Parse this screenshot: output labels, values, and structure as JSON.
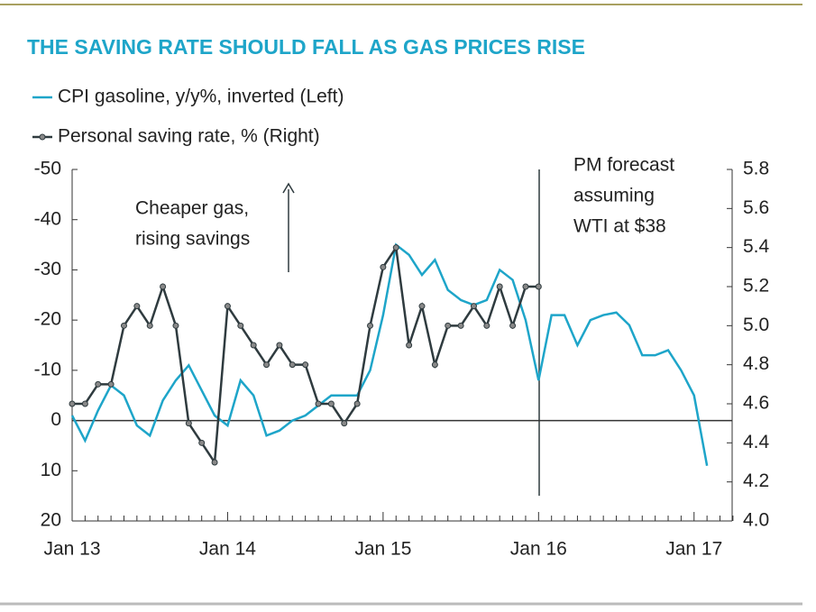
{
  "chart_data": {
    "type": "line",
    "title": "THE SAVING RATE SHOULD FALL AS GAS PRICES RISE",
    "annotations": [
      [
        "Cheaper gas,",
        "rising savings"
      ],
      [
        "PM forecast",
        "assuming",
        "WTI at $38"
      ]
    ],
    "categories": [
      "Jan 13",
      null,
      null,
      null,
      null,
      null,
      null,
      null,
      null,
      null,
      null,
      null,
      "Jan 14",
      null,
      null,
      null,
      null,
      null,
      null,
      null,
      null,
      null,
      null,
      null,
      "Jan 15",
      null,
      null,
      null,
      null,
      null,
      null,
      null,
      null,
      null,
      null,
      null,
      "Jan 16",
      null,
      null,
      null,
      null,
      null,
      null,
      null,
      null,
      null,
      null,
      null,
      "Jan 17",
      null,
      null,
      null
    ],
    "series": [
      {
        "name": "CPI gasoline, y/y%, inverted (Left)",
        "color": "#1ea5c9",
        "axis": "y",
        "values": [
          -1,
          4,
          -2,
          -7,
          -5,
          1,
          3,
          -4,
          -8,
          -11,
          -6,
          -1,
          1,
          -8,
          -5,
          3,
          2,
          0,
          -1,
          -3,
          -5,
          -5,
          -5,
          -10,
          -21,
          -35,
          -33,
          -29,
          -32,
          -26,
          -24,
          -23,
          -24,
          -30,
          -28,
          -20,
          -8,
          -21,
          -21,
          -15,
          -20,
          -21,
          -21.5,
          -19,
          -13,
          -13,
          -14,
          -10,
          -5,
          9,
          null,
          null
        ]
      },
      {
        "name": "Personal saving rate, % (Right)",
        "color": "#2f3b3f",
        "axis": "y2",
        "values": [
          4.6,
          4.6,
          4.7,
          4.7,
          5.0,
          5.1,
          5.0,
          5.2,
          5.0,
          4.5,
          4.4,
          4.3,
          5.1,
          5.0,
          4.9,
          4.8,
          4.9,
          4.8,
          4.8,
          4.6,
          4.6,
          4.5,
          4.6,
          5.0,
          5.3,
          5.4,
          4.9,
          5.1,
          4.8,
          5.0,
          5.0,
          5.1,
          5.0,
          5.2,
          5.0,
          5.2,
          5.2,
          null,
          null,
          null,
          null,
          null,
          null,
          null,
          null,
          null,
          null,
          null,
          null,
          null,
          null,
          null
        ]
      }
    ],
    "ylim": [
      20,
      -50
    ],
    "yticks": [
      -50,
      -40,
      -30,
      -20,
      -10,
      0,
      10,
      20
    ],
    "y2lim": [
      4.0,
      5.8
    ],
    "y2ticks": [
      {
        "value": 4.0,
        "label": "4.0"
      },
      4.2,
      4.4,
      4.6,
      4.8,
      {
        "value": 5.0,
        "label": "5.0"
      },
      5.2,
      5.4,
      5.6,
      5.8
    ]
  }
}
